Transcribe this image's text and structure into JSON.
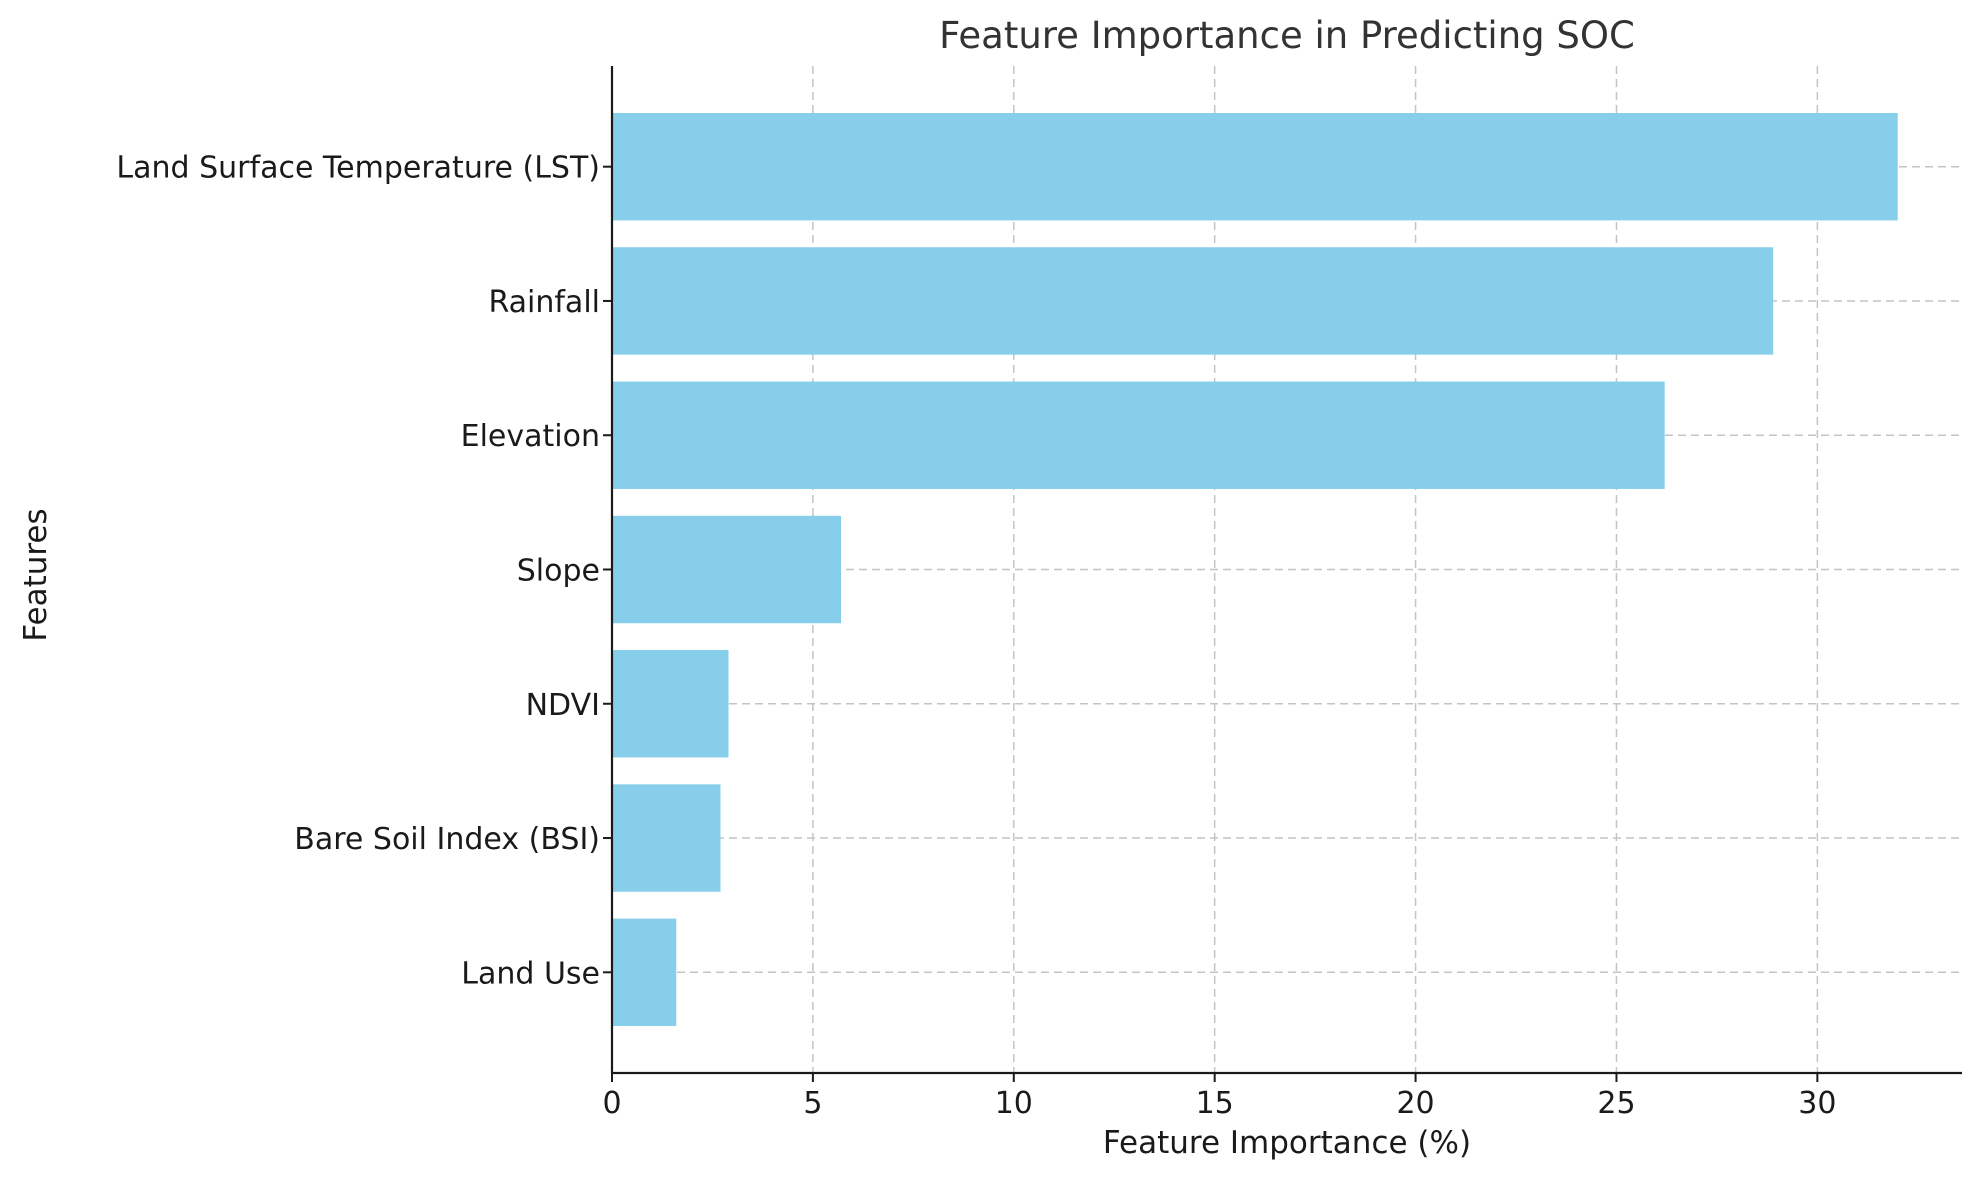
{
  "chart_data": {
    "type": "bar",
    "orientation": "horizontal",
    "title": "Feature Importance in Predicting SOC",
    "xlabel": "Feature Importance (%)",
    "ylabel": "Features",
    "categories": [
      "Land Surface Temperature (LST)",
      "Rainfall",
      "Elevation",
      "Slope",
      "NDVI",
      "Bare Soil Index (BSI)",
      "Land Use"
    ],
    "values": [
      32.0,
      28.9,
      26.2,
      5.7,
      2.9,
      2.7,
      1.6
    ],
    "xlim": [
      0,
      33.6
    ],
    "xticks": [
      0,
      5,
      10,
      15,
      20,
      25,
      30
    ],
    "grid": true,
    "bar_color": "#87ceeb"
  }
}
